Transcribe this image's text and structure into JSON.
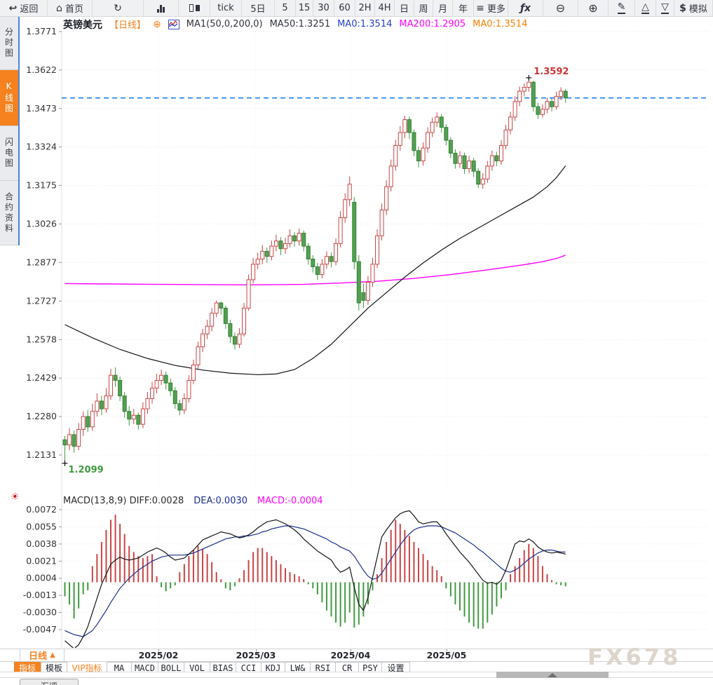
{
  "toolbar": {
    "items": [
      {
        "icon": "back-arrow-icon",
        "label": "返回"
      },
      {
        "icon": "home-icon",
        "label": "首页"
      },
      {
        "icon": "refresh-icon",
        "label": ""
      },
      {
        "icon": "bar-chart-icon",
        "label": ""
      },
      {
        "icon": "candlestick-icon",
        "label": ""
      },
      {
        "icon": "",
        "label": "tick"
      },
      {
        "icon": "",
        "label": "5日"
      },
      {
        "icon": "",
        "label": "5"
      },
      {
        "icon": "",
        "label": "15"
      },
      {
        "icon": "",
        "label": "30"
      },
      {
        "icon": "",
        "label": "60"
      },
      {
        "icon": "",
        "label": "2H"
      },
      {
        "icon": "",
        "label": "4H"
      },
      {
        "icon": "",
        "label": "日"
      },
      {
        "icon": "",
        "label": "周"
      },
      {
        "icon": "",
        "label": "月"
      },
      {
        "icon": "",
        "label": "年"
      },
      {
        "icon": "menu-icon",
        "label": "更多"
      },
      {
        "icon": "fx-icon",
        "label": ""
      },
      {
        "icon": "zoom-out-icon",
        "label": ""
      },
      {
        "icon": "zoom-in-icon",
        "label": ""
      },
      {
        "icon": "pencil-icon",
        "label": ""
      },
      {
        "icon": "triangle-up-icon",
        "label": ""
      },
      {
        "icon": "triangle-down-icon",
        "label": ""
      },
      {
        "icon": "dollar-icon",
        "label": "模拟"
      }
    ]
  },
  "sidebar": {
    "items": [
      {
        "label": "分时图",
        "active": false
      },
      {
        "label": "K线图",
        "active": true
      },
      {
        "label": "闪电图",
        "active": false
      },
      {
        "label": "合约资料",
        "active": false
      }
    ]
  },
  "header": {
    "symbol": "英镑美元",
    "period_tag": "【日线】",
    "ma_group": "MA1(50,0,200,0)",
    "ma50": "MA50:1.3251",
    "ma0_blue": "MA0:1.3514",
    "ma200": "MA200:1.2905",
    "ma0_orange": "MA0:1.3514"
  },
  "macd_header": {
    "title_and_diff": "MACD(13,8,9) DIFF:0.0028",
    "dea": "DEA:0.0030",
    "macd": "MACD:-0.0004"
  },
  "footer": {
    "period_selector": "日线",
    "period_arrow": "▲",
    "indicator_tabs": [
      {
        "label": "指标",
        "style": "tab-active"
      },
      {
        "label": "模板",
        "style": "tab-plain"
      },
      {
        "label": "VIP指标",
        "style": "tab-vip"
      }
    ],
    "indicators": [
      "MA",
      "MACD",
      "BOLL",
      "VOL",
      "BIAS",
      "CCI",
      "KDJ",
      "LW&",
      "RSI",
      "CR",
      "PSY"
    ],
    "settings_label": "设置"
  },
  "watermark": "FX678",
  "bottom_tab": {
    "label": "汇评"
  },
  "colors": {
    "accent_orange": "#f5821f",
    "up_red": "#c94444",
    "down_green": "#3f9a3f",
    "ma50_black": "#141414",
    "ma200_magenta": "#ff00ff",
    "diff_black": "#141414",
    "dea_blue": "#1b2f8e",
    "last_price_blue": "#1a7fe8"
  },
  "chart_data": {
    "type": "candlestick+macd",
    "symbol": "英镑美元",
    "period": "日线",
    "price_axis": [
      1.3771,
      1.3622,
      1.3473,
      1.3324,
      1.3175,
      1.3026,
      1.2877,
      1.2727,
      1.2578,
      1.2429,
      1.228,
      1.2131
    ],
    "macd_axis": [
      0.0072,
      0.0055,
      0.0038,
      0.0021,
      0.0004,
      -0.0013,
      -0.003,
      -0.0047
    ],
    "x_labels": [
      "2025/02",
      "2025/03",
      "2025/04",
      "2025/05"
    ],
    "last_price": 1.3514,
    "high_marker": {
      "index": 101,
      "price": 1.3592,
      "label": "1.3592"
    },
    "low_marker": {
      "index": 0,
      "price": 1.2099,
      "label": "1.2099"
    },
    "candles": [
      [
        1.219,
        1.2205,
        1.2099,
        1.217
      ],
      [
        1.217,
        1.2235,
        1.215,
        1.221
      ],
      [
        1.221,
        1.2225,
        1.214,
        1.2165
      ],
      [
        1.2165,
        1.2255,
        1.215,
        1.223
      ],
      [
        1.223,
        1.23,
        1.2205,
        1.228
      ],
      [
        1.228,
        1.2305,
        1.222,
        1.224
      ],
      [
        1.224,
        1.233,
        1.2225,
        1.23
      ],
      [
        1.23,
        1.237,
        1.228,
        1.234
      ],
      [
        1.234,
        1.236,
        1.2285,
        1.231
      ],
      [
        1.231,
        1.239,
        1.2295,
        1.236
      ],
      [
        1.236,
        1.2465,
        1.2345,
        1.244
      ],
      [
        1.244,
        1.247,
        1.2395,
        1.242
      ],
      [
        1.242,
        1.2435,
        1.234,
        1.236
      ],
      [
        1.236,
        1.2375,
        1.2275,
        1.23
      ],
      [
        1.23,
        1.232,
        1.2245,
        1.227
      ],
      [
        1.227,
        1.231,
        1.225,
        1.2285
      ],
      [
        1.2285,
        1.2295,
        1.223,
        1.225
      ],
      [
        1.225,
        1.2335,
        1.2235,
        1.231
      ],
      [
        1.231,
        1.2375,
        1.229,
        1.235
      ],
      [
        1.235,
        1.2415,
        1.233,
        1.239
      ],
      [
        1.239,
        1.2445,
        1.237,
        1.242
      ],
      [
        1.242,
        1.2462,
        1.2402,
        1.244
      ],
      [
        1.244,
        1.2455,
        1.2385,
        1.241
      ],
      [
        1.241,
        1.2428,
        1.236,
        1.238
      ],
      [
        1.238,
        1.2395,
        1.231,
        1.233
      ],
      [
        1.233,
        1.2345,
        1.2285,
        1.2305
      ],
      [
        1.2305,
        1.237,
        1.229,
        1.235
      ],
      [
        1.235,
        1.244,
        1.2335,
        1.242
      ],
      [
        1.242,
        1.25,
        1.2405,
        1.248
      ],
      [
        1.248,
        1.257,
        1.2465,
        1.255
      ],
      [
        1.255,
        1.262,
        1.253,
        1.26
      ],
      [
        1.26,
        1.2655,
        1.258,
        1.263
      ],
      [
        1.263,
        1.27,
        1.261,
        1.268
      ],
      [
        1.268,
        1.273,
        1.2665,
        1.272
      ],
      [
        1.272,
        1.2725,
        1.2675,
        1.27
      ],
      [
        1.27,
        1.271,
        1.262,
        1.264
      ],
      [
        1.264,
        1.2655,
        1.2565,
        1.259
      ],
      [
        1.259,
        1.2605,
        1.254,
        1.256
      ],
      [
        1.256,
        1.2622,
        1.2545,
        1.26
      ],
      [
        1.26,
        1.272,
        1.259,
        1.27
      ],
      [
        1.27,
        1.283,
        1.269,
        1.281
      ],
      [
        1.281,
        1.2895,
        1.2795,
        1.287
      ],
      [
        1.287,
        1.2915,
        1.285,
        1.289
      ],
      [
        1.289,
        1.2945,
        1.287,
        1.292
      ],
      [
        1.292,
        1.2935,
        1.2875,
        1.29
      ],
      [
        1.29,
        1.2962,
        1.2885,
        1.294
      ],
      [
        1.294,
        1.2985,
        1.292,
        1.296
      ],
      [
        1.296,
        1.2975,
        1.2905,
        1.293
      ],
      [
        1.293,
        1.2972,
        1.291,
        1.295
      ],
      [
        1.295,
        1.3005,
        1.2935,
        1.298
      ],
      [
        1.298,
        1.2995,
        1.2938,
        1.296
      ],
      [
        1.296,
        1.3008,
        1.2942,
        1.299
      ],
      [
        1.299,
        1.3,
        1.292,
        1.294
      ],
      [
        1.294,
        1.2952,
        1.2868,
        1.289
      ],
      [
        1.289,
        1.2905,
        1.2838,
        1.286
      ],
      [
        1.286,
        1.2875,
        1.2808,
        1.283
      ],
      [
        1.283,
        1.289,
        1.2815,
        1.287
      ],
      [
        1.287,
        1.292,
        1.2852,
        1.29
      ],
      [
        1.29,
        1.2915,
        1.2858,
        1.288
      ],
      [
        1.288,
        1.297,
        1.2865,
        1.295
      ],
      [
        1.295,
        1.3075,
        1.2935,
        1.305
      ],
      [
        1.305,
        1.3145,
        1.303,
        1.312
      ],
      [
        1.312,
        1.321,
        1.3095,
        1.318
      ],
      [
        1.311,
        1.313,
        1.285,
        1.288
      ],
      [
        1.288,
        1.2905,
        1.269,
        1.272
      ],
      [
        1.276,
        1.2795,
        1.27,
        1.273
      ],
      [
        1.273,
        1.2825,
        1.2712,
        1.28
      ],
      [
        1.28,
        1.2895,
        1.2782,
        1.287
      ],
      [
        1.287,
        1.3005,
        1.2855,
        1.298
      ],
      [
        1.298,
        1.3105,
        1.2962,
        1.308
      ],
      [
        1.308,
        1.3195,
        1.306,
        1.317
      ],
      [
        1.317,
        1.3275,
        1.3152,
        1.325
      ],
      [
        1.325,
        1.3352,
        1.3232,
        1.333
      ],
      [
        1.333,
        1.3405,
        1.331,
        1.338
      ],
      [
        1.338,
        1.3445,
        1.3358,
        1.343
      ],
      [
        1.343,
        1.3442,
        1.3355,
        1.338
      ],
      [
        1.338,
        1.3392,
        1.3288,
        1.331
      ],
      [
        1.331,
        1.3325,
        1.3245,
        1.327
      ],
      [
        1.327,
        1.3342,
        1.3252,
        1.332
      ],
      [
        1.332,
        1.34,
        1.3302,
        1.338
      ],
      [
        1.338,
        1.3438,
        1.3362,
        1.342
      ],
      [
        1.342,
        1.3458,
        1.3402,
        1.344
      ],
      [
        1.344,
        1.3452,
        1.338,
        1.34
      ],
      [
        1.34,
        1.3412,
        1.333,
        1.335
      ],
      [
        1.335,
        1.3362,
        1.328,
        1.33
      ],
      [
        1.33,
        1.3315,
        1.324,
        1.326
      ],
      [
        1.326,
        1.3308,
        1.3242,
        1.329
      ],
      [
        1.329,
        1.3302,
        1.322,
        1.324
      ],
      [
        1.324,
        1.329,
        1.3222,
        1.327
      ],
      [
        1.327,
        1.3282,
        1.3208,
        1.323
      ],
      [
        1.323,
        1.3242,
        1.3165,
        1.318
      ],
      [
        1.318,
        1.3222,
        1.3162,
        1.32
      ],
      [
        1.32,
        1.327,
        1.3185,
        1.325
      ],
      [
        1.325,
        1.331,
        1.3232,
        1.329
      ],
      [
        1.329,
        1.3305,
        1.325,
        1.327
      ],
      [
        1.327,
        1.335,
        1.3255,
        1.333
      ],
      [
        1.333,
        1.341,
        1.3315,
        1.339
      ],
      [
        1.339,
        1.346,
        1.3372,
        1.344
      ],
      [
        1.344,
        1.352,
        1.3425,
        1.35
      ],
      [
        1.35,
        1.3558,
        1.3482,
        1.354
      ],
      [
        1.354,
        1.357,
        1.352,
        1.3555
      ],
      [
        1.3555,
        1.3592,
        1.3538,
        1.3575
      ],
      [
        1.3575,
        1.358,
        1.3462,
        1.348
      ],
      [
        1.348,
        1.3495,
        1.3432,
        1.345
      ],
      [
        1.345,
        1.349,
        1.3438,
        1.347
      ],
      [
        1.347,
        1.3515,
        1.3455,
        1.35
      ],
      [
        1.35,
        1.3512,
        1.3462,
        1.348
      ],
      [
        1.348,
        1.3538,
        1.3468,
        1.352
      ],
      [
        1.352,
        1.3555,
        1.3505,
        1.354
      ],
      [
        1.354,
        1.3548,
        1.3495,
        1.3514
      ]
    ],
    "ma50_points": [
      [
        0,
        1.2636
      ],
      [
        6,
        1.2585
      ],
      [
        12,
        1.254
      ],
      [
        18,
        1.2505
      ],
      [
        24,
        1.2478
      ],
      [
        30,
        1.246
      ],
      [
        36,
        1.2448
      ],
      [
        42,
        1.2442
      ],
      [
        46,
        1.2445
      ],
      [
        50,
        1.2462
      ],
      [
        54,
        1.2505
      ],
      [
        58,
        1.256
      ],
      [
        62,
        1.263
      ],
      [
        66,
        1.27
      ],
      [
        70,
        1.276
      ],
      [
        74,
        1.282
      ],
      [
        78,
        1.2875
      ],
      [
        82,
        1.2925
      ],
      [
        86,
        1.297
      ],
      [
        90,
        1.301
      ],
      [
        94,
        1.305
      ],
      [
        98,
        1.309
      ],
      [
        102,
        1.313
      ],
      [
        105,
        1.317
      ],
      [
        107,
        1.3205
      ],
      [
        109,
        1.3251
      ]
    ],
    "ma200_points": [
      [
        0,
        1.2795
      ],
      [
        20,
        1.2792
      ],
      [
        40,
        1.279
      ],
      [
        52,
        1.2792
      ],
      [
        60,
        1.2797
      ],
      [
        68,
        1.2804
      ],
      [
        76,
        1.2815
      ],
      [
        84,
        1.283
      ],
      [
        92,
        1.2848
      ],
      [
        100,
        1.2868
      ],
      [
        104,
        1.288
      ],
      [
        107,
        1.2892
      ],
      [
        109,
        1.2905
      ]
    ],
    "macd": {
      "diff": [
        -0.0058,
        -0.0062,
        -0.0066,
        -0.0062,
        -0.0054,
        -0.0044,
        -0.003,
        -0.0016,
        -0.0002,
        0.0008,
        0.0018,
        0.0022,
        0.0025,
        0.0023,
        0.0022,
        0.0023,
        0.0024,
        0.0027,
        0.003,
        0.0032,
        0.0034,
        0.0032,
        0.0029,
        0.0025,
        0.0022,
        0.0023,
        0.0024,
        0.0028,
        0.0032,
        0.0037,
        0.0042,
        0.0044,
        0.0046,
        0.0048,
        0.005,
        0.0049,
        0.0048,
        0.0046,
        0.0044,
        0.0045,
        0.0047,
        0.005,
        0.0054,
        0.0057,
        0.006,
        0.0061,
        0.0062,
        0.006,
        0.0058,
        0.0055,
        0.0052,
        0.0048,
        0.0043,
        0.0039,
        0.0035,
        0.0031,
        0.0028,
        0.0025,
        0.0022,
        0.0015,
        0.001,
        0.0012,
        0.0015,
        -0.0005,
        -0.0022,
        -0.0028,
        -0.0015,
        0.0005,
        0.0025,
        0.0045,
        0.0052,
        0.0058,
        0.0064,
        0.0068,
        0.007,
        0.0071,
        0.0066,
        0.006,
        0.0058,
        0.0059,
        0.006,
        0.006,
        0.0055,
        0.0048,
        0.0042,
        0.0036,
        0.003,
        0.0025,
        0.002,
        0.0014,
        0.0008,
        0.0002,
        -0.0001,
        0.0,
        -0.0002,
        0.0002,
        0.0012,
        0.0025,
        0.0038,
        0.0041,
        0.004,
        0.0043,
        0.004,
        0.0035,
        0.0032,
        0.003,
        0.0029,
        0.003,
        0.0029,
        0.0028
      ],
      "dea": [
        -0.0048,
        -0.005,
        -0.0052,
        -0.0053,
        -0.0054,
        -0.0051,
        -0.0048,
        -0.0042,
        -0.0035,
        -0.0028,
        -0.002,
        -0.0013,
        -0.0006,
        -0.0001,
        0.0004,
        0.0008,
        0.0012,
        0.0015,
        0.0018,
        0.0021,
        0.0023,
        0.0025,
        0.0026,
        0.0027,
        0.0027,
        0.0027,
        0.0027,
        0.0028,
        0.0029,
        0.0031,
        0.0033,
        0.0035,
        0.0037,
        0.0039,
        0.0041,
        0.0043,
        0.0044,
        0.0045,
        0.0045,
        0.0046,
        0.0046,
        0.0047,
        0.0048,
        0.005,
        0.0051,
        0.0053,
        0.0054,
        0.0055,
        0.0056,
        0.0056,
        0.0055,
        0.0054,
        0.0053,
        0.0051,
        0.0049,
        0.0047,
        0.0045,
        0.0043,
        0.004,
        0.0038,
        0.0035,
        0.0033,
        0.0031,
        0.0026,
        0.0019,
        0.0012,
        0.0006,
        0.0003,
        0.0004,
        0.0009,
        0.0016,
        0.0023,
        0.003,
        0.0037,
        0.0043,
        0.0048,
        0.0052,
        0.0054,
        0.0055,
        0.0056,
        0.0056,
        0.0056,
        0.0055,
        0.0053,
        0.0051,
        0.0049,
        0.0046,
        0.0043,
        0.004,
        0.0037,
        0.0033,
        0.003,
        0.0026,
        0.0022,
        0.0018,
        0.0014,
        0.0011,
        0.001,
        0.0012,
        0.0015,
        0.0019,
        0.0023,
        0.0026,
        0.0029,
        0.0031,
        0.0032,
        0.0032,
        0.0031,
        0.003,
        0.003
      ],
      "hist": [
        -0.0014,
        -0.0022,
        -0.0036,
        -0.0026,
        -0.0012,
        -0.0008,
        0.0016,
        0.0028,
        0.004,
        0.0052,
        0.0062,
        0.0067,
        0.0058,
        0.0048,
        0.0036,
        0.003,
        0.0026,
        0.0024,
        0.0026,
        0.0028,
        0.0006,
        -0.0005,
        -0.0009,
        -0.0006,
        -0.0003,
        0.001,
        0.0018,
        0.0026,
        0.0032,
        0.0036,
        0.0033,
        0.0028,
        0.002,
        0.001,
        0.0003,
        -0.0006,
        -0.0008,
        -0.0004,
        0.0004,
        0.0012,
        0.0022,
        0.003,
        0.0034,
        0.0034,
        0.003,
        0.0026,
        0.0022,
        0.0018,
        0.0014,
        0.001,
        0.0008,
        0.0006,
        0.0003,
        -0.0002,
        -0.0006,
        -0.0012,
        -0.002,
        -0.0028,
        -0.0034,
        -0.004,
        -0.0044,
        -0.004,
        -0.003,
        -0.0045,
        -0.0042,
        -0.0034,
        -0.0022,
        -0.0008,
        0.0008,
        0.0024,
        0.004,
        0.0052,
        0.0062,
        0.0058,
        0.0052,
        0.0046,
        0.004,
        0.0034,
        0.0028,
        0.0022,
        0.0016,
        0.0012,
        0.0006,
        -0.0006,
        -0.0014,
        -0.0022,
        -0.0028,
        -0.0034,
        -0.004,
        -0.0044,
        -0.0046,
        -0.0046,
        -0.004,
        -0.0032,
        -0.0024,
        -0.0016,
        -0.0008,
        0.0008,
        0.0016,
        0.0024,
        0.0032,
        0.0038,
        0.0034,
        0.0026,
        0.0016,
        0.0008,
        0.0002,
        -0.0002,
        -0.0003,
        -0.0004
      ]
    }
  }
}
